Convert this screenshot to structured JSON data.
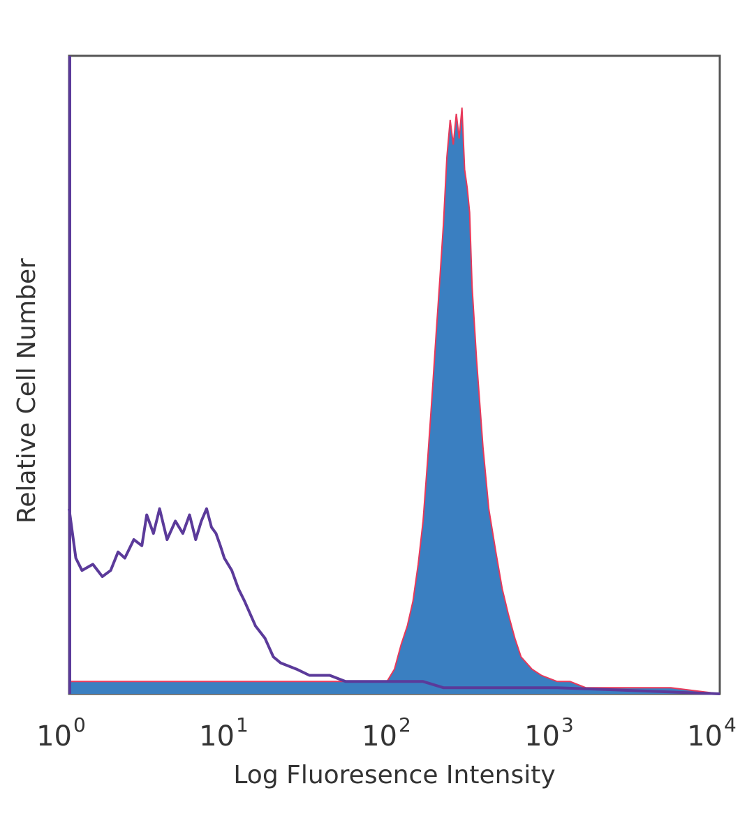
{
  "chart_data": {
    "type": "area",
    "title": "",
    "xlabel": "Log Fluoresence Intensity",
    "ylabel": "Relative Cell Number",
    "x_scale": "log",
    "xlim": [
      1,
      10000
    ],
    "ylim": [
      0,
      1
    ],
    "grid": false,
    "legend": "none",
    "x_ticks": [
      {
        "value": 1,
        "base": "10",
        "exp": "0"
      },
      {
        "value": 10,
        "base": "10",
        "exp": "1"
      },
      {
        "value": 100,
        "base": "10",
        "exp": "2"
      },
      {
        "value": 1000,
        "base": "10",
        "exp": "3"
      },
      {
        "value": 10000,
        "base": "10",
        "exp": "4"
      }
    ],
    "series": [
      {
        "style": "filled",
        "color": "#3a7fc1",
        "edge_color": "#e8395a",
        "x": [
          1,
          1.3,
          1.8,
          2.5,
          3.5,
          5,
          7,
          10,
          15,
          20,
          30,
          50,
          70,
          90,
          100,
          110,
          120,
          130,
          140,
          150,
          160,
          170,
          180,
          190,
          200,
          210,
          220,
          230,
          240,
          250,
          260,
          270,
          280,
          290,
          300,
          320,
          350,
          380,
          420,
          460,
          500,
          550,
          600,
          700,
          800,
          1000,
          1200,
          1500,
          2000,
          3000,
          5000,
          10000
        ],
        "y": [
          0.02,
          0.02,
          0.02,
          0.02,
          0.02,
          0.02,
          0.02,
          0.02,
          0.02,
          0.02,
          0.02,
          0.02,
          0.02,
          0.02,
          0.04,
          0.08,
          0.11,
          0.15,
          0.21,
          0.28,
          0.38,
          0.48,
          0.58,
          0.67,
          0.76,
          0.87,
          0.93,
          0.89,
          0.94,
          0.9,
          0.95,
          0.85,
          0.82,
          0.78,
          0.66,
          0.54,
          0.4,
          0.3,
          0.23,
          0.17,
          0.13,
          0.09,
          0.06,
          0.04,
          0.03,
          0.02,
          0.02,
          0.01,
          0.01,
          0.01,
          0.01,
          0.0
        ]
      },
      {
        "style": "line",
        "color": "#5b3a9a",
        "x": [
          1,
          1.1,
          1.2,
          1.4,
          1.6,
          1.8,
          2,
          2.2,
          2.5,
          2.8,
          3,
          3.3,
          3.6,
          4,
          4.5,
          5,
          5.5,
          6,
          6.5,
          7,
          7.5,
          8,
          8.5,
          9,
          10,
          11,
          12,
          14,
          16,
          18,
          20,
          25,
          30,
          40,
          50,
          70,
          100,
          150,
          200,
          300,
          500,
          1000,
          10000
        ],
        "y": [
          0.3,
          0.22,
          0.2,
          0.21,
          0.19,
          0.2,
          0.23,
          0.22,
          0.25,
          0.24,
          0.29,
          0.26,
          0.3,
          0.25,
          0.28,
          0.26,
          0.29,
          0.25,
          0.28,
          0.3,
          0.27,
          0.26,
          0.24,
          0.22,
          0.2,
          0.17,
          0.15,
          0.11,
          0.09,
          0.06,
          0.05,
          0.04,
          0.03,
          0.03,
          0.02,
          0.02,
          0.02,
          0.02,
          0.01,
          0.01,
          0.01,
          0.01,
          0.0
        ]
      }
    ]
  }
}
